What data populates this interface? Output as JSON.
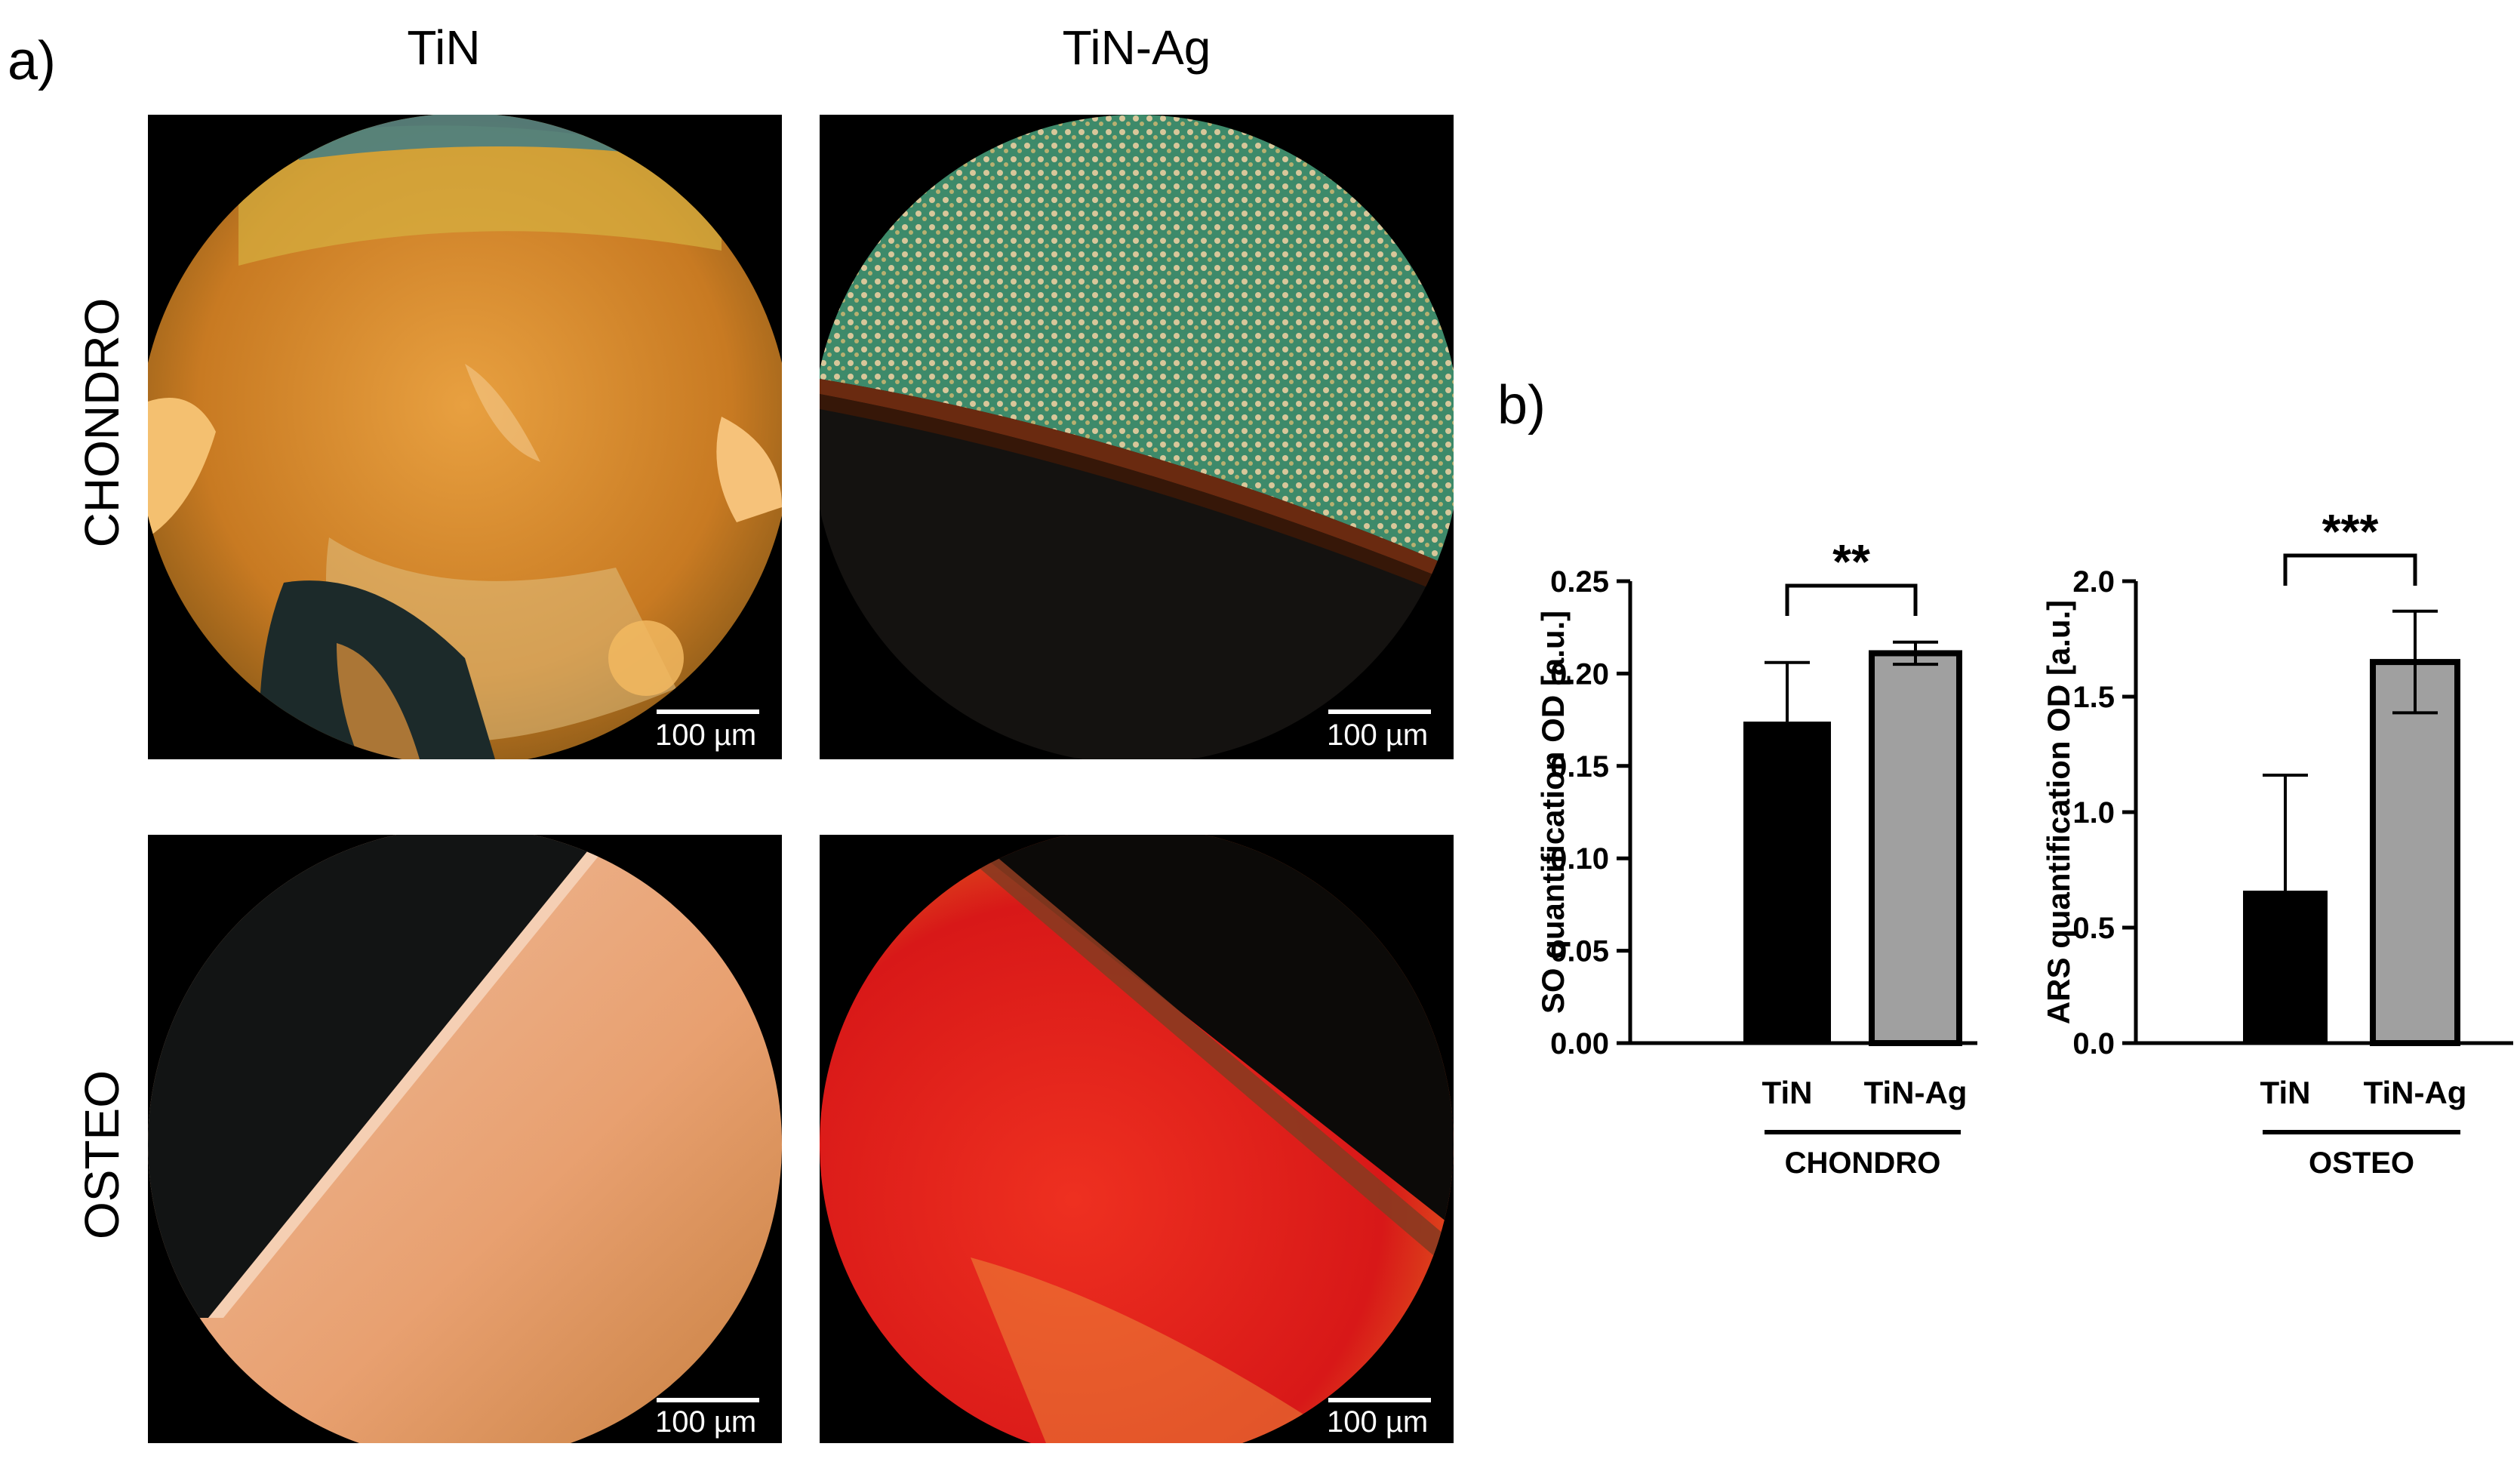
{
  "panel_a": {
    "label": "a)",
    "columns": [
      "TiN",
      "TiN-Ag"
    ],
    "rows": [
      "CHONDRO",
      "OSTEO"
    ],
    "scale_bar": "100 µm",
    "image_colors": {
      "chondro_tin": "#d98a25",
      "chondro_tinag_top": "#3d8a6a",
      "chondro_tinag_bottom": "#1a1410",
      "osteo_tin": "#e8a878",
      "osteo_tinag": "#e02020"
    }
  },
  "panel_b": {
    "label": "b)"
  },
  "chart_data": [
    {
      "type": "bar",
      "categories": [
        "TiN",
        "TiN-Ag"
      ],
      "values": [
        0.174,
        0.211
      ],
      "errors": [
        0.032,
        0.006
      ],
      "colors": [
        "#000000",
        "#a0a0a0"
      ],
      "ylabel": "SO quantification OD [a.u.]",
      "ylim": [
        0,
        0.25
      ],
      "yticks": [
        "0.00",
        "0.05",
        "0.10",
        "0.15",
        "0.20",
        "0.25"
      ],
      "group_label": "CHONDRO",
      "significance": "**"
    },
    {
      "type": "bar",
      "categories": [
        "TiN",
        "TiN-Ag"
      ],
      "values": [
        0.66,
        1.65
      ],
      "errors": [
        0.5,
        0.22
      ],
      "colors": [
        "#000000",
        "#a0a0a0"
      ],
      "ylabel": "ARS quantification OD [a.u.]",
      "ylim": [
        0,
        2.0
      ],
      "yticks": [
        "0.0",
        "0.5",
        "1.0",
        "1.5",
        "2.0"
      ],
      "group_label": "OSTEO",
      "significance": "***"
    }
  ]
}
